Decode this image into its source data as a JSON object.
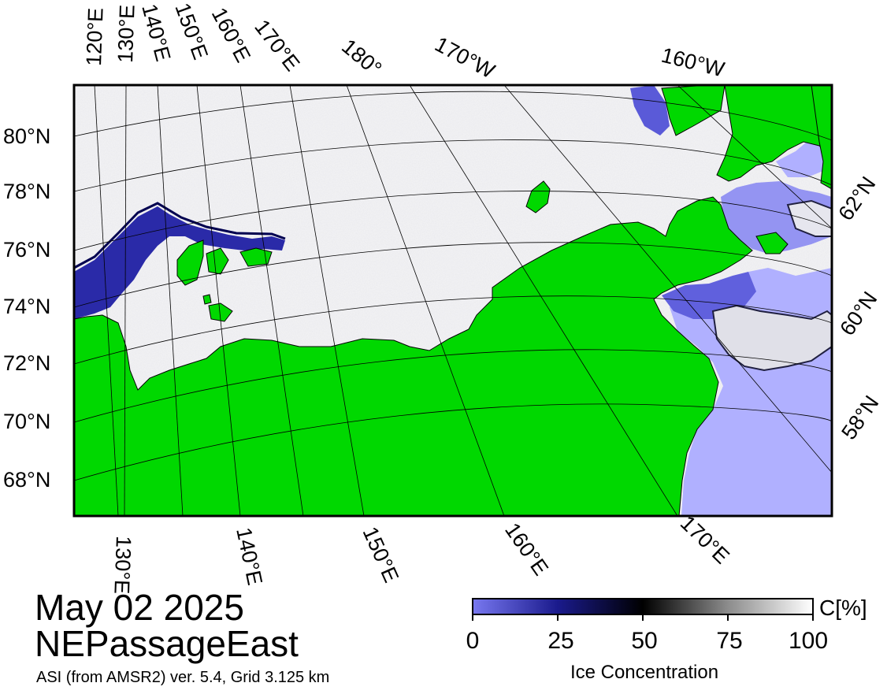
{
  "map": {
    "date": "May 02 2025",
    "region": "NEPassageEast",
    "credit": "ASI (from AMSR2) ver. 5.4,  Grid 3.125 km",
    "lat_labels": [
      "80°N",
      "78°N",
      "76°N",
      "74°N",
      "72°N",
      "70°N",
      "68°N"
    ],
    "lon_labels_top": [
      "120°E",
      "130°E",
      "140°E",
      "150°E",
      "160°E",
      "170°E",
      "180°",
      "170°W",
      "160°W"
    ],
    "lon_labels_bottom": [
      "130°E",
      "140°E",
      "150°E",
      "160°E",
      "170°E"
    ],
    "lat_labels_right": [
      "62°N",
      "60°N",
      "58°N"
    ],
    "colors": {
      "land": "#00d800",
      "open_water": "#b0b0ff",
      "low_ice": "#3a3ad0",
      "high_ice": "#ffffff"
    }
  },
  "colorbar": {
    "title": "Ice Concentration",
    "unit": "C[%]",
    "ticks": [
      "0",
      "25",
      "50",
      "75",
      "100"
    ],
    "range": [
      0,
      100
    ],
    "stops": [
      {
        "value": 0,
        "color": "#7878f0"
      },
      {
        "value": 25,
        "color": "#1a1a8c"
      },
      {
        "value": 50,
        "color": "#000000"
      },
      {
        "value": 75,
        "color": "#8c8c8c"
      },
      {
        "value": 100,
        "color": "#ffffff"
      }
    ]
  }
}
